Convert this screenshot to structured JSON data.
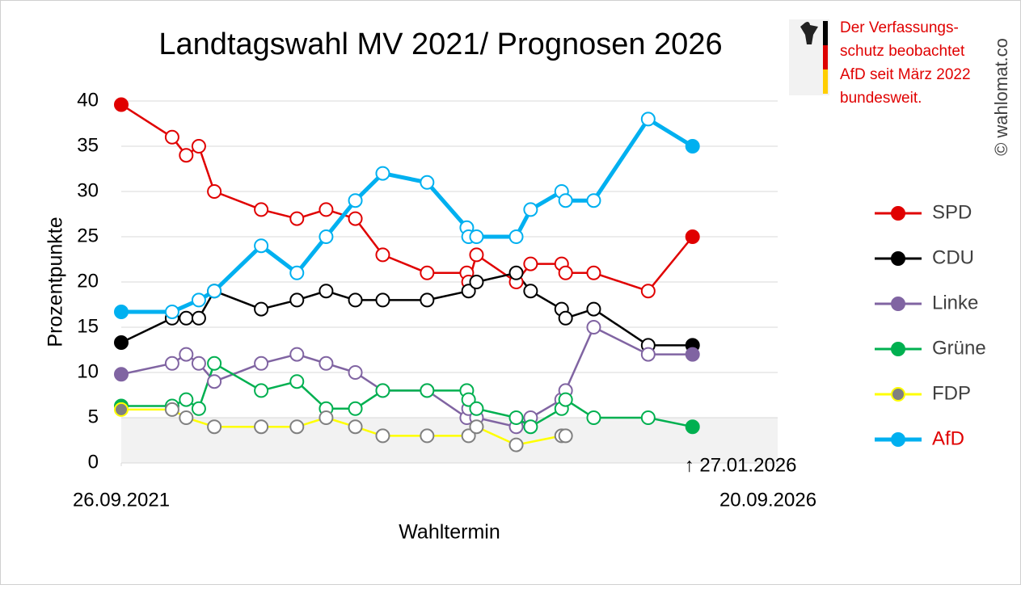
{
  "chart_data": {
    "type": "line",
    "title": "Landtagswahl MV 2021/ Prognosen 2026",
    "y_label": "Prozentpunkte",
    "x_label": "Wahltermin",
    "note": [
      "Der Verfassungs-",
      "schutz beobachtet",
      "AfD seit März 2022",
      "bundesweit."
    ],
    "watermark": "© wahlomat.co",
    "annotation": {
      "text": "↑ 27.01.2026",
      "x": 1584
    },
    "xlim": [
      0,
      1820
    ],
    "xticks": [
      {
        "value": 0,
        "label": "26.09.2021"
      },
      {
        "value": 1820,
        "label": "20.09.2026"
      }
    ],
    "ylim": [
      0,
      40
    ],
    "yticks": [
      0,
      5,
      10,
      15,
      20,
      25,
      30,
      35,
      40
    ],
    "grid": true,
    "threshold": 5,
    "series": [
      {
        "name": "SPD",
        "color": "#e00000",
        "x": [
          0,
          141,
          180,
          215,
          258,
          388,
          487,
          568,
          649,
          725,
          848,
          958,
          963,
          985,
          1095,
          1135,
          1221,
          1232,
          1310,
          1461,
          1584
        ],
        "values": [
          39.6,
          36,
          34,
          35,
          30,
          28,
          27,
          28,
          27,
          23,
          21,
          21,
          20,
          23,
          20,
          22,
          22,
          21,
          21,
          19,
          25
        ]
      },
      {
        "name": "CDU",
        "color": "#000000",
        "x": [
          0,
          141,
          180,
          215,
          258,
          388,
          487,
          568,
          649,
          725,
          848,
          963,
          985,
          1095,
          1135,
          1221,
          1232,
          1310,
          1461,
          1584
        ],
        "values": [
          13.3,
          16,
          16,
          16,
          19,
          17,
          18,
          19,
          18,
          18,
          18,
          19,
          20,
          21,
          19,
          17,
          16,
          17,
          13,
          13
        ]
      },
      {
        "name": "Linke",
        "color": "#8064a2",
        "x": [
          0,
          141,
          180,
          215,
          258,
          388,
          487,
          568,
          649,
          725,
          848,
          958,
          963,
          985,
          1095,
          1135,
          1221,
          1232,
          1310,
          1461,
          1584
        ],
        "values": [
          9.8,
          11,
          12,
          11,
          9,
          11,
          12,
          11,
          10,
          8,
          8,
          5,
          6,
          5,
          4,
          5,
          7,
          8,
          15,
          12,
          12
        ]
      },
      {
        "name": "Grüne",
        "color": "#00b050",
        "x": [
          0,
          141,
          180,
          215,
          258,
          388,
          487,
          568,
          649,
          725,
          848,
          958,
          963,
          985,
          1095,
          1135,
          1221,
          1232,
          1310,
          1461,
          1584
        ],
        "values": [
          6.3,
          6.3,
          7,
          6,
          11,
          8,
          9,
          6,
          6,
          8,
          8,
          8,
          7,
          6,
          5,
          4,
          6,
          7,
          5,
          5,
          4
        ]
      },
      {
        "name": "FDP",
        "color": "#ffff00",
        "marker_color": "#808080",
        "x": [
          0,
          141,
          180,
          258,
          388,
          487,
          568,
          649,
          725,
          848,
          963,
          985,
          1095,
          1221,
          1232
        ],
        "values": [
          5.9,
          5.9,
          5,
          4,
          4,
          4,
          5,
          4,
          3,
          3,
          3,
          4,
          2,
          3,
          3
        ]
      },
      {
        "name": "AfD",
        "color": "#00b0f0",
        "label_color": "#e00000",
        "x": [
          0,
          141,
          215,
          258,
          388,
          487,
          568,
          649,
          725,
          848,
          958,
          963,
          985,
          1095,
          1135,
          1221,
          1232,
          1310,
          1461,
          1584
        ],
        "values": [
          16.7,
          16.7,
          18,
          19,
          24,
          21,
          25,
          29,
          32,
          31,
          26,
          25,
          25,
          25,
          28,
          30,
          29,
          29,
          38,
          35
        ]
      }
    ]
  }
}
